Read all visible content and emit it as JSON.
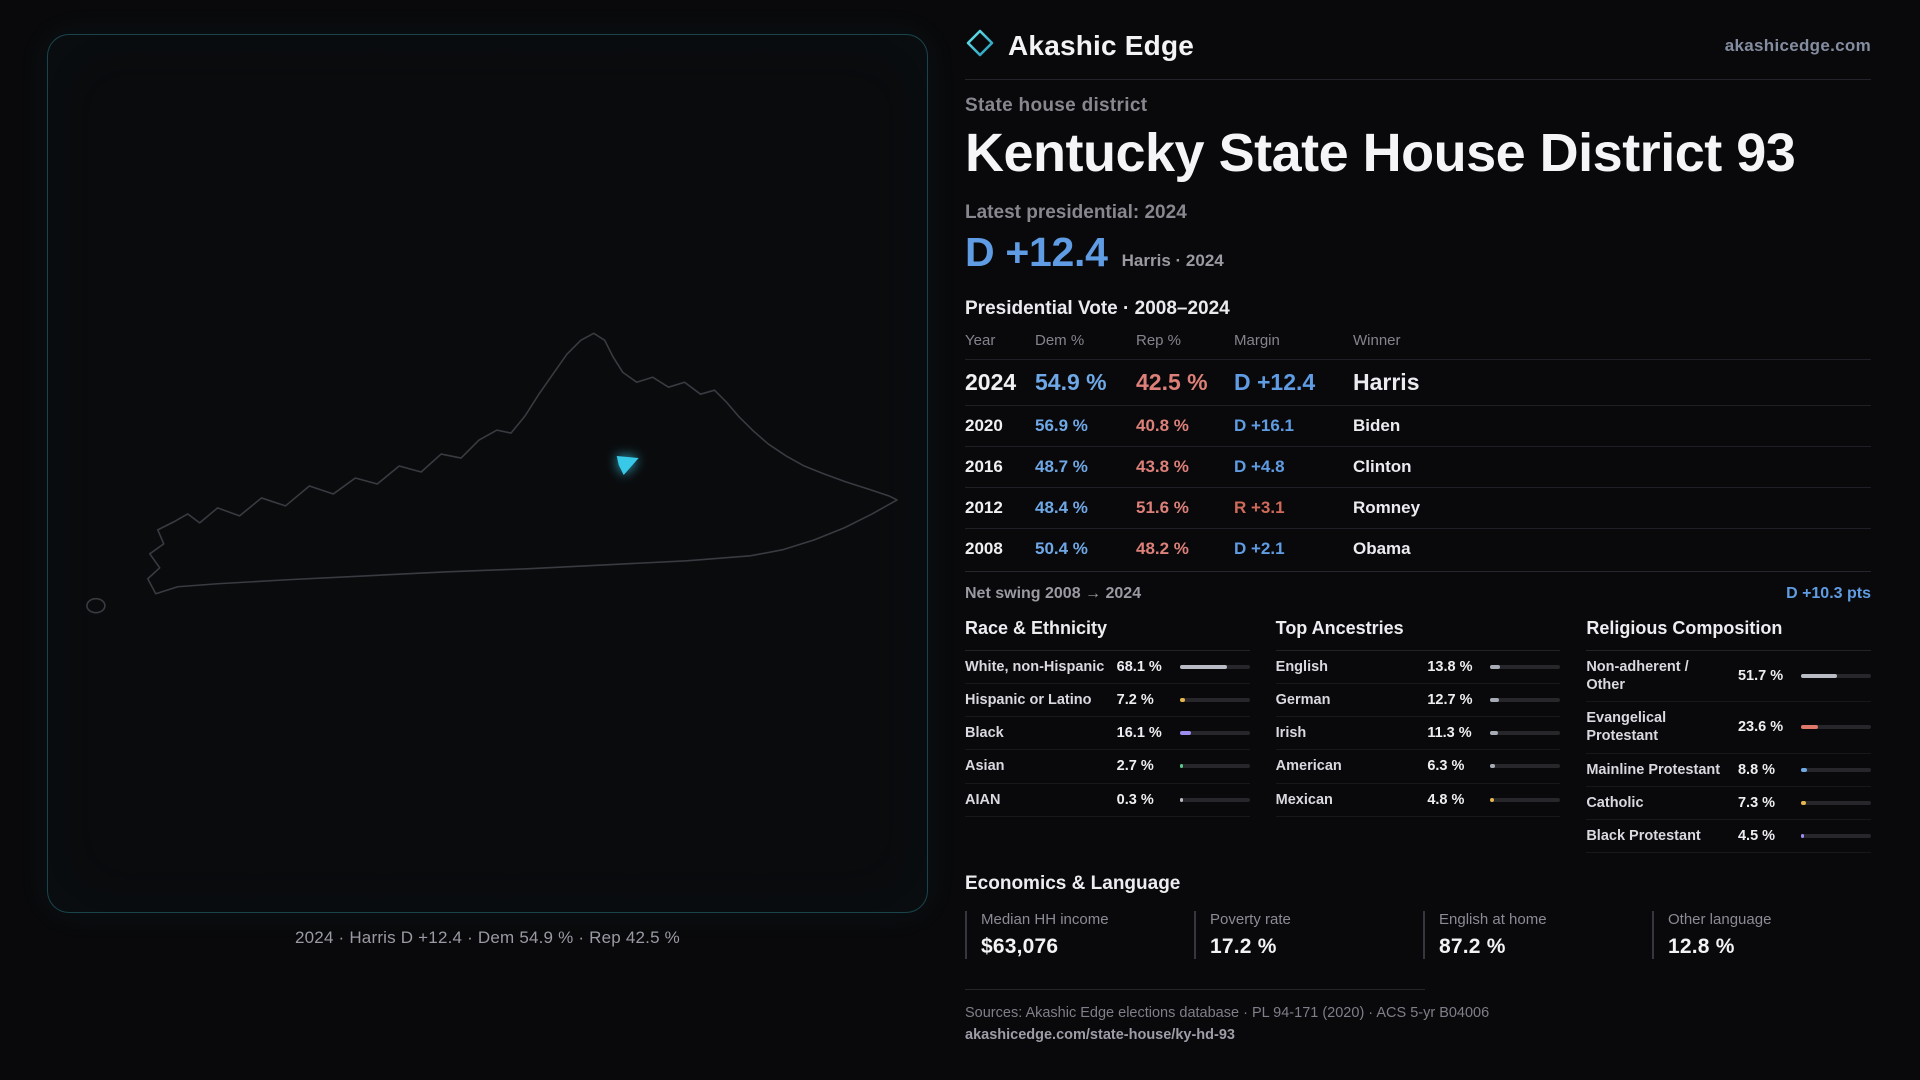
{
  "brand": {
    "logo_icon": "diamond-icon",
    "name": "Akashic Edge",
    "site": "akashicedge.com"
  },
  "colors": {
    "accent_cyan": "#38c8e8",
    "dem_blue": "#5f9ce3",
    "rep_red": "#dd8079"
  },
  "map": {
    "caption": "2024 · Harris D +12.4 · Dem 54.9 % · Rep 42.5 %"
  },
  "district": {
    "kicker": "State house district",
    "title": "Kentucky State House District 93",
    "latest_label": "Latest presidential: 2024",
    "headline_margin": "D +12.4",
    "headline_note": "Harris · 2024"
  },
  "vote_table": {
    "title": "Presidential Vote · 2008–2024",
    "columns": [
      "Year",
      "Dem %",
      "Rep %",
      "Margin",
      "Winner"
    ],
    "rows": [
      {
        "year": "2024",
        "dem": "54.9 %",
        "rep": "42.5 %",
        "margin": "D +12.4",
        "party": "D",
        "winner": "Harris",
        "featured": true
      },
      {
        "year": "2020",
        "dem": "56.9 %",
        "rep": "40.8 %",
        "margin": "D +16.1",
        "party": "D",
        "winner": "Biden",
        "featured": false
      },
      {
        "year": "2016",
        "dem": "48.7 %",
        "rep": "43.8 %",
        "margin": "D +4.8",
        "party": "D",
        "winner": "Clinton",
        "featured": false
      },
      {
        "year": "2012",
        "dem": "48.4 %",
        "rep": "51.6 %",
        "margin": "R +3.1",
        "party": "R",
        "winner": "Romney",
        "featured": false
      },
      {
        "year": "2008",
        "dem": "50.4 %",
        "rep": "48.2 %",
        "margin": "D +2.1",
        "party": "D",
        "winner": "Obama",
        "featured": false
      }
    ]
  },
  "swing": {
    "label": "Net swing 2008 → 2024",
    "value": "D +10.3 pts"
  },
  "demographics": [
    {
      "title": "Race & Ethnicity",
      "rows": [
        {
          "label": "White, non-Hispanic",
          "value": "68.1 %",
          "pct": 68.1,
          "color": "#b9bcc4"
        },
        {
          "label": "Hispanic or Latino",
          "value": "7.2 %",
          "pct": 7.2,
          "color": "#e4b54e"
        },
        {
          "label": "Black",
          "value": "16.1 %",
          "pct": 16.1,
          "color": "#9b8cf0"
        },
        {
          "label": "Asian",
          "value": "2.7 %",
          "pct": 2.7,
          "color": "#59c98a"
        },
        {
          "label": "AIAN",
          "value": "0.3 %",
          "pct": 0.3,
          "color": "#b9bcc4"
        }
      ]
    },
    {
      "title": "Top Ancestries",
      "rows": [
        {
          "label": "English",
          "value": "13.8 %",
          "pct": 13.8,
          "color": "#a7abb5"
        },
        {
          "label": "German",
          "value": "12.7 %",
          "pct": 12.7,
          "color": "#a7abb5"
        },
        {
          "label": "Irish",
          "value": "11.3 %",
          "pct": 11.3,
          "color": "#a7abb5"
        },
        {
          "label": "American",
          "value": "6.3 %",
          "pct": 6.3,
          "color": "#a7abb5"
        },
        {
          "label": "Mexican",
          "value": "4.8 %",
          "pct": 4.8,
          "color": "#e4b54e"
        }
      ]
    },
    {
      "title": "Religious Composition",
      "rows": [
        {
          "label": "Non-adherent / Other",
          "value": "51.7 %",
          "pct": 51.7,
          "color": "#b9bcc4"
        },
        {
          "label": "Evangelical Protestant",
          "value": "23.6 %",
          "pct": 23.6,
          "color": "#e0776b"
        },
        {
          "label": "Mainline Protestant",
          "value": "8.8 %",
          "pct": 8.8,
          "color": "#6fa8e6"
        },
        {
          "label": "Catholic",
          "value": "7.3 %",
          "pct": 7.3,
          "color": "#e4b54e"
        },
        {
          "label": "Black Protestant",
          "value": "4.5 %",
          "pct": 4.5,
          "color": "#9b8cf0"
        }
      ]
    }
  ],
  "economics": {
    "title": "Economics & Language",
    "stats": [
      {
        "label": "Median HH income",
        "value": "$63,076"
      },
      {
        "label": "Poverty rate",
        "value": "17.2 %"
      },
      {
        "label": "English at home",
        "value": "87.2 %"
      },
      {
        "label": "Other language",
        "value": "12.8 %"
      }
    ]
  },
  "footer": {
    "sources": "Sources: Akashic Edge elections database · PL 94-171 (2020) · ACS 5-yr B04006",
    "permalink": "akashicedge.com/state-house/ky-hd-93"
  }
}
